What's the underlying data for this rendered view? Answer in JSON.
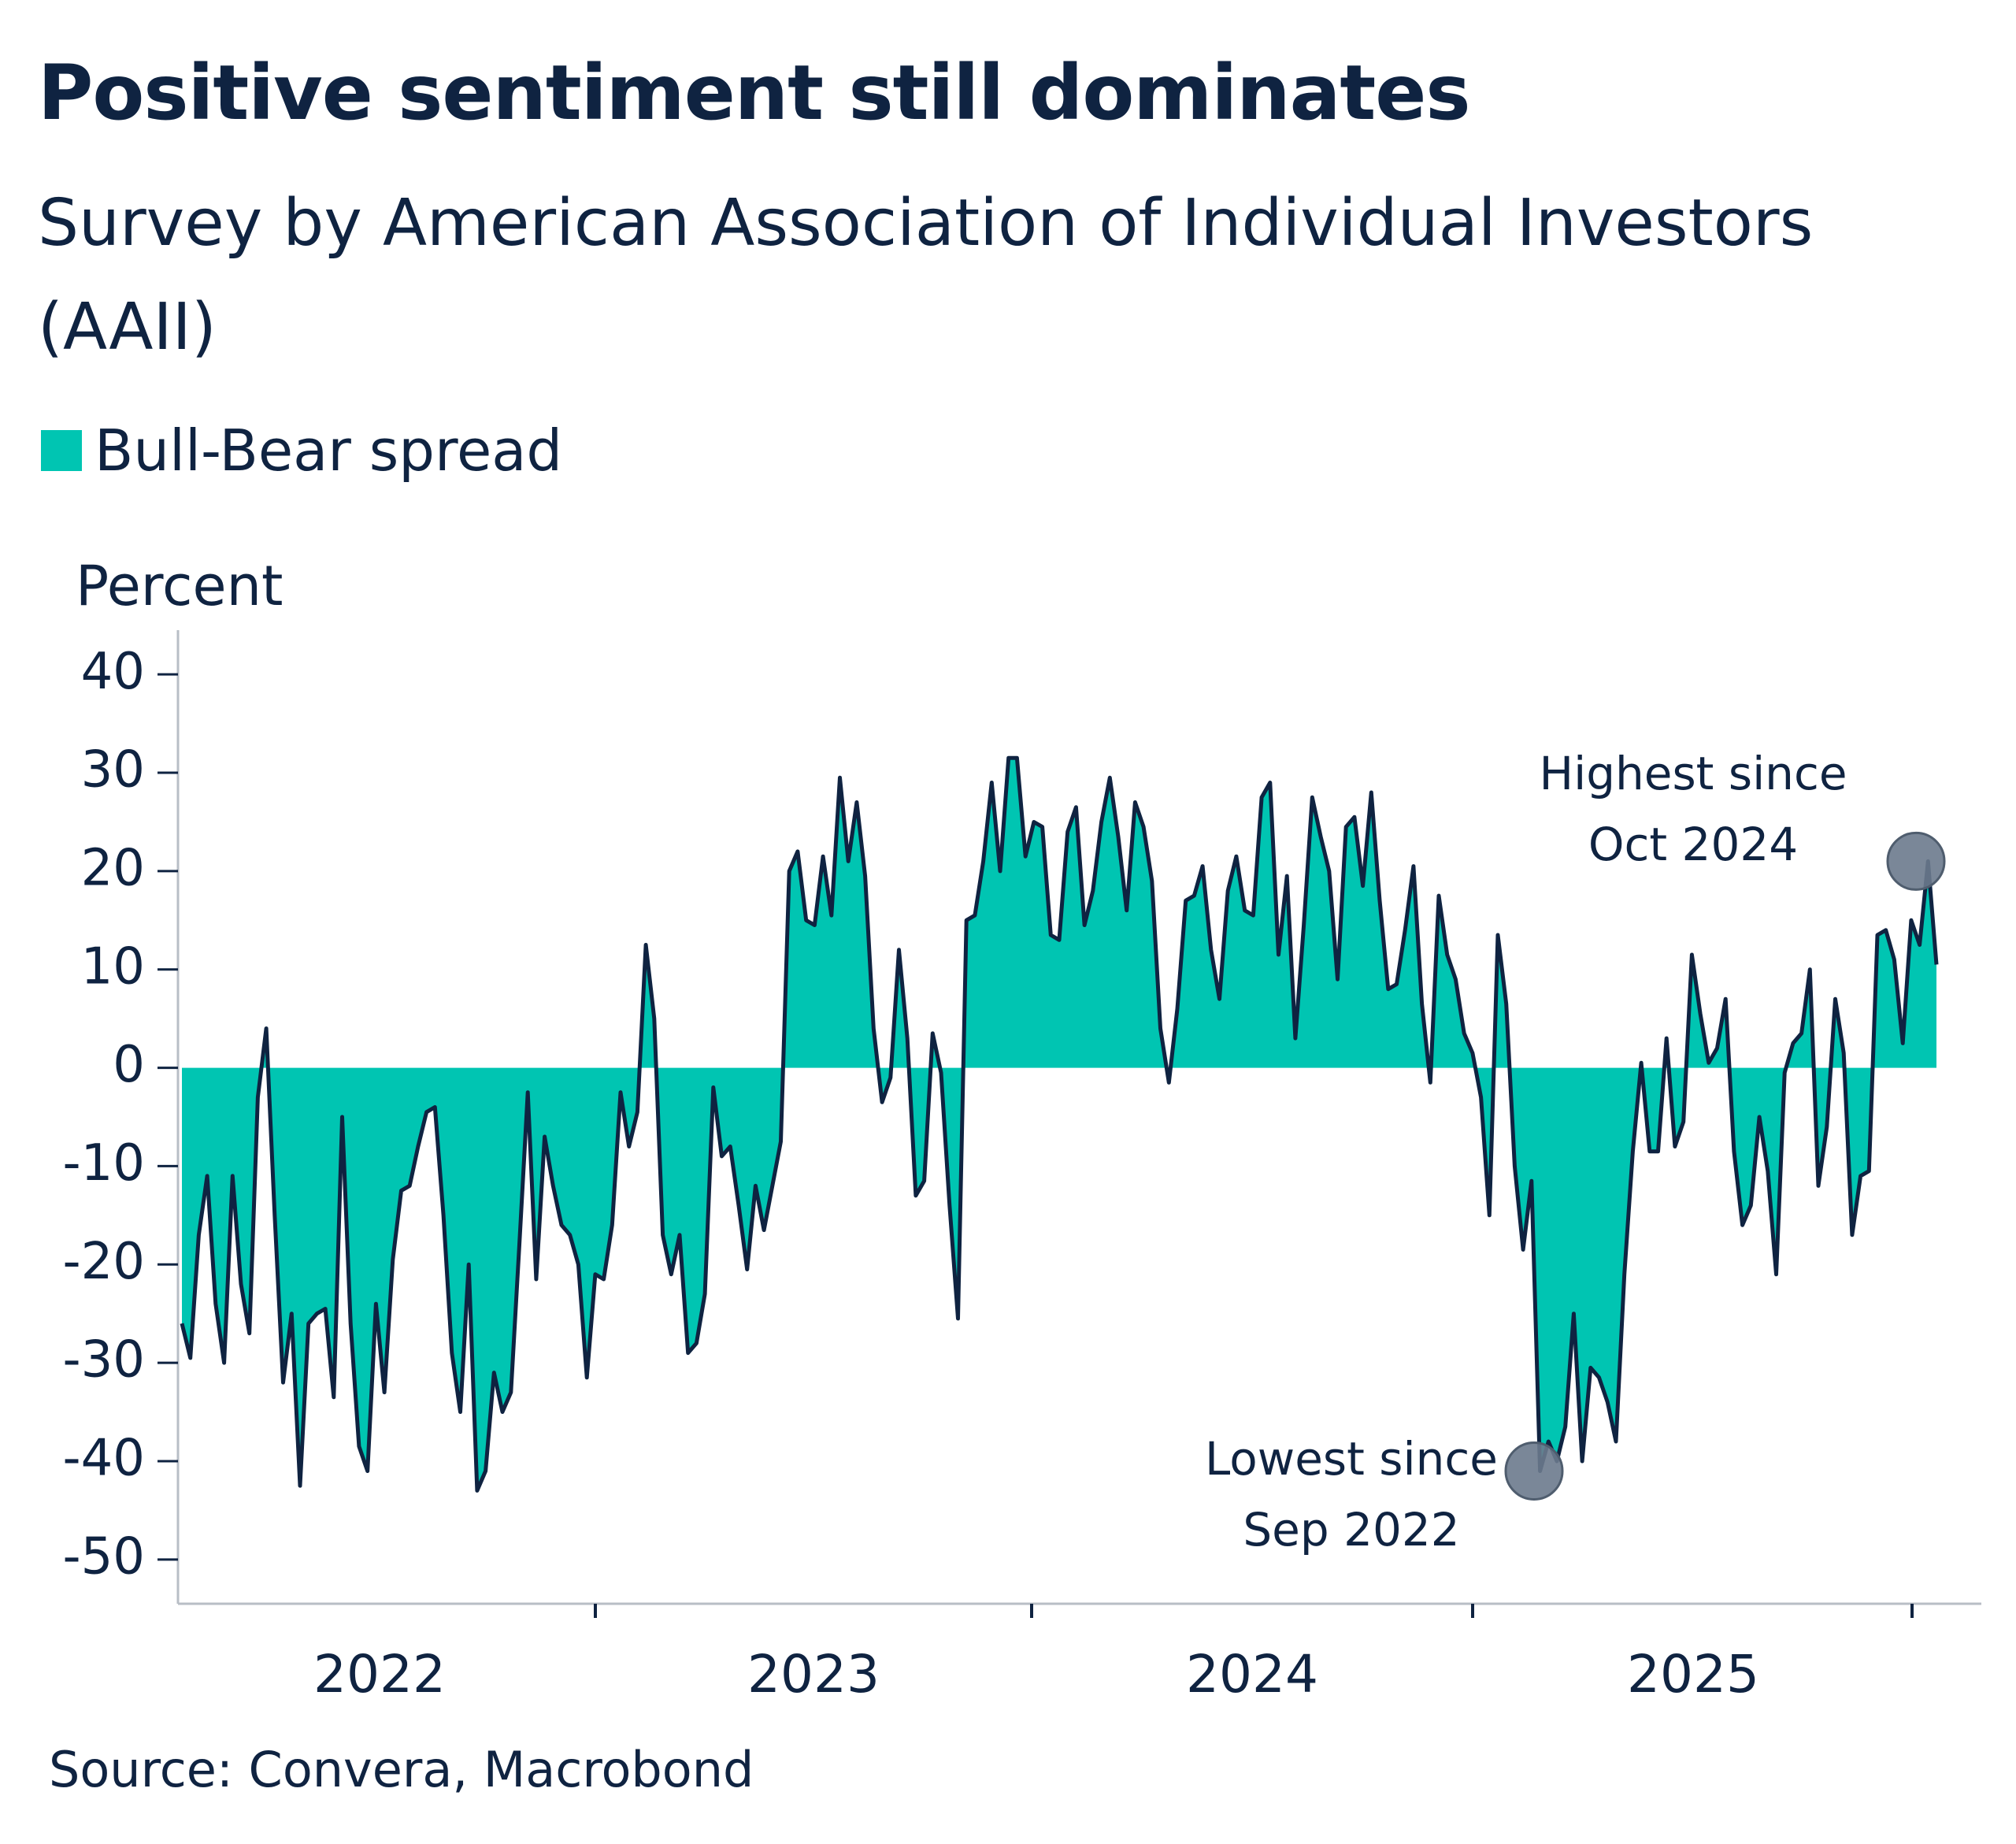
{
  "title": "Positive sentiment still dominates",
  "subtitle": "Survey by American Association of Individual Investors (AAII)",
  "source": "Source: Convera, Macrobond",
  "colors": {
    "area": "#00c5b2",
    "line": "#0f2341",
    "marker": "#6b7a8d",
    "text": "#0f2341"
  },
  "chart_data": {
    "type": "area",
    "ylabel": "Percent",
    "ylim": [
      -54.5,
      44.5
    ],
    "yticks": [
      40,
      30,
      20,
      10,
      0,
      -10,
      -20,
      -30,
      -40,
      -50
    ],
    "x_tick_labels": [
      "2022",
      "2023",
      "2024",
      "2025"
    ],
    "grid": false,
    "legend_position": "top-left",
    "series": [
      {
        "name": "Bull-Bear spread",
        "frequency": "weekly",
        "values": [
          -26,
          -29.5,
          -17,
          -11,
          -24,
          -30,
          -11,
          -22,
          -27,
          -3,
          4,
          -15,
          -32,
          -25,
          -42.5,
          -26,
          -25,
          -24.5,
          -33.5,
          -5,
          -26,
          -38.5,
          -41,
          -24,
          -33,
          -19.5,
          -12.5,
          -12,
          -8,
          -4.5,
          -4,
          -15,
          -29,
          -35,
          -20,
          -43,
          -41,
          -31,
          -35,
          -33,
          -18,
          -2.5,
          -21.5,
          -7,
          -12,
          -16,
          -17,
          -20,
          -31.5,
          -21,
          -21.5,
          -16,
          -2.5,
          -8,
          -4.5,
          12.5,
          5,
          -17,
          -21,
          -17,
          -29,
          -28,
          -23,
          -2,
          -9,
          -8,
          -14,
          -20.5,
          -12,
          -16.5,
          -12,
          -7.5,
          20,
          22,
          15,
          14.5,
          21.5,
          15.5,
          29.5,
          21,
          27,
          19.5,
          4,
          -3.5,
          -1,
          12,
          3,
          -13,
          -11.5,
          3.5,
          -0.5,
          -14,
          -25.5,
          15,
          15.5,
          21,
          29,
          20,
          31.5,
          31.5,
          21.5,
          25,
          24.5,
          13.5,
          13,
          24,
          26.5,
          14.5,
          18,
          25,
          29.5,
          23.5,
          16,
          27,
          24.5,
          19,
          4,
          -1.5,
          6,
          17,
          17.5,
          20.5,
          12,
          7,
          18,
          21.5,
          16,
          15.5,
          27.5,
          29,
          11.5,
          19.5,
          3,
          14.5,
          27.5,
          23.5,
          20,
          9,
          24.5,
          25.5,
          18.5,
          28,
          17,
          8,
          8.5,
          14,
          20.5,
          6.5,
          -1.5,
          17.5,
          11.5,
          9,
          3.5,
          1.5,
          -3,
          -15,
          13.5,
          6.5,
          -10,
          -18.5,
          -11.5,
          -41,
          -38,
          -40,
          -36.5,
          -25,
          -40,
          -30.5,
          -31.5,
          -34,
          -38,
          -21,
          -8.5,
          0.5,
          -8.5,
          -8.5,
          3,
          -8,
          -5.5,
          11.5,
          5.5,
          0.5,
          2,
          7,
          -8.5,
          -16,
          -14,
          -5,
          -10.5,
          -21,
          -0.5,
          2.5,
          3.5,
          10,
          -12,
          -6,
          7,
          1.5,
          -17,
          -11,
          -10.5,
          13.5,
          14,
          11,
          2.5,
          15,
          12.5,
          21,
          10.5
        ]
      }
    ],
    "annotations": [
      {
        "text_lines": [
          "Lowest since",
          "Sep 2022"
        ],
        "value": -41
      },
      {
        "text_lines": [
          "Highest since",
          "Oct 2024"
        ],
        "value": 21
      }
    ]
  }
}
